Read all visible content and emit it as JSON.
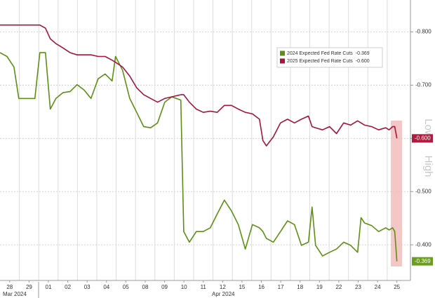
{
  "chart_data": {
    "type": "line",
    "x": [
      -0.5,
      -0.14,
      0.22,
      0.47,
      1.3,
      1.56,
      1.85,
      2.1,
      2.39,
      2.75,
      3.12,
      3.48,
      3.84,
      4.2,
      4.57,
      4.93,
      5.29,
      5.47,
      5.83,
      6.2,
      6.56,
      6.92,
      7.28,
      7.64,
      8.01,
      8.37,
      8.84,
      8.99,
      9.28,
      9.64,
      10.0,
      10.36,
      10.72,
      11.09,
      11.45,
      11.81,
      12.17,
      12.54,
      12.9,
      13.08,
      13.26,
      13.62,
      13.99,
      14.35,
      14.71,
      15.07,
      15.43,
      15.62,
      15.8,
      16.16,
      16.52,
      16.88,
      17.25,
      17.61,
      17.97,
      18.15,
      18.33,
      18.7,
      19.06,
      19.42,
      19.6,
      19.78,
      19.89,
      20.0
    ],
    "series": [
      {
        "name": "2024 Expected Fed Rate Cuts",
        "color": "#5e8f14",
        "tag_color": "#6b9d1e",
        "last_label": "-0.369",
        "values": [
          -0.761,
          -0.754,
          -0.734,
          -0.675,
          -0.675,
          -0.761,
          -0.761,
          -0.655,
          -0.675,
          -0.686,
          -0.688,
          -0.701,
          -0.691,
          -0.675,
          -0.712,
          -0.721,
          -0.708,
          -0.754,
          -0.728,
          -0.675,
          -0.649,
          -0.622,
          -0.62,
          -0.629,
          -0.668,
          -0.678,
          -0.672,
          -0.425,
          -0.405,
          -0.425,
          -0.425,
          -0.432,
          -0.458,
          -0.484,
          -0.464,
          -0.438,
          -0.392,
          -0.438,
          -0.432,
          -0.425,
          -0.412,
          -0.405,
          -0.425,
          -0.445,
          -0.438,
          -0.399,
          -0.405,
          -0.471,
          -0.399,
          -0.379,
          -0.386,
          -0.392,
          -0.405,
          -0.399,
          -0.386,
          -0.451,
          -0.441,
          -0.436,
          -0.425,
          -0.432,
          -0.428,
          -0.432,
          -0.425,
          -0.369
        ]
      },
      {
        "name": "2025 Expected Fed Rate Cuts",
        "color": "#a5153c",
        "tag_color": "#b01c40",
        "last_label": "-0.600",
        "values": [
          -0.813,
          -0.813,
          -0.813,
          -0.813,
          -0.813,
          -0.813,
          -0.807,
          -0.787,
          -0.778,
          -0.77,
          -0.761,
          -0.757,
          -0.757,
          -0.757,
          -0.754,
          -0.754,
          -0.747,
          -0.743,
          -0.734,
          -0.717,
          -0.695,
          -0.682,
          -0.675,
          -0.668,
          -0.675,
          -0.678,
          -0.682,
          -0.682,
          -0.668,
          -0.655,
          -0.649,
          -0.651,
          -0.649,
          -0.662,
          -0.662,
          -0.655,
          -0.649,
          -0.646,
          -0.636,
          -0.596,
          -0.586,
          -0.603,
          -0.629,
          -0.636,
          -0.629,
          -0.636,
          -0.642,
          -0.622,
          -0.62,
          -0.616,
          -0.622,
          -0.609,
          -0.629,
          -0.625,
          -0.633,
          -0.629,
          -0.625,
          -0.622,
          -0.616,
          -0.62,
          -0.616,
          -0.622,
          -0.622,
          -0.6
        ]
      }
    ],
    "xlim": [
      -0.5,
      20.7
    ],
    "xticks": [
      {
        "value": 0,
        "label": "28"
      },
      {
        "value": 1,
        "label": "29"
      },
      {
        "value": 2,
        "label": "01"
      },
      {
        "value": 3,
        "label": "02"
      },
      {
        "value": 4,
        "label": "03"
      },
      {
        "value": 5,
        "label": "04"
      },
      {
        "value": 6,
        "label": "05"
      },
      {
        "value": 7,
        "label": "08"
      },
      {
        "value": 8,
        "label": "09"
      },
      {
        "value": 9,
        "label": "10"
      },
      {
        "value": 10,
        "label": "11"
      },
      {
        "value": 11,
        "label": "12"
      },
      {
        "value": 12,
        "label": "15"
      },
      {
        "value": 13,
        "label": "16"
      },
      {
        "value": 14,
        "label": "17"
      },
      {
        "value": 15,
        "label": "18"
      },
      {
        "value": 16,
        "label": "19"
      },
      {
        "value": 17,
        "label": "22"
      },
      {
        "value": 18,
        "label": "23"
      },
      {
        "value": 19,
        "label": "24"
      },
      {
        "value": 20,
        "label": "25"
      }
    ],
    "x_period_labels": [
      "Mar 2024",
      "Apr 2024"
    ],
    "ylim": [
      -0.333,
      -0.86
    ],
    "yticks": [
      {
        "value": -0.8,
        "label": "-0.800"
      },
      {
        "value": -0.7,
        "label": "-0.700"
      },
      {
        "value": -0.6,
        "label": "-0.600"
      },
      {
        "value": -0.5,
        "label": "-0.500"
      },
      {
        "value": -0.4,
        "label": "-0.400"
      }
    ],
    "grid": true,
    "legend": "upper right",
    "band_labels": [
      "Low",
      "High"
    ]
  }
}
